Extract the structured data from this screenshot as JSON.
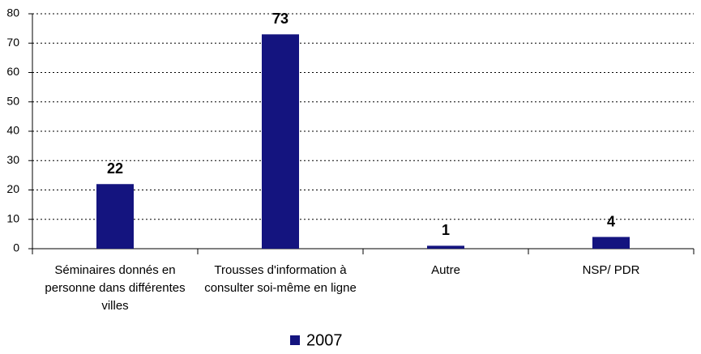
{
  "chart_data": {
    "type": "bar",
    "categories": [
      "Séminaires donnés en personne dans différentes villes",
      "Trousses d'information à consulter soi-même en ligne",
      "Autre",
      "NSP/ PDR"
    ],
    "series": [
      {
        "name": "2007",
        "color": "#14147f",
        "values": [
          22,
          73,
          1,
          4
        ]
      }
    ],
    "ylim": [
      0,
      80
    ],
    "yticks": [
      0,
      10,
      20,
      30,
      40,
      50,
      60,
      70,
      80
    ],
    "grid": true,
    "legend": "bottom"
  }
}
